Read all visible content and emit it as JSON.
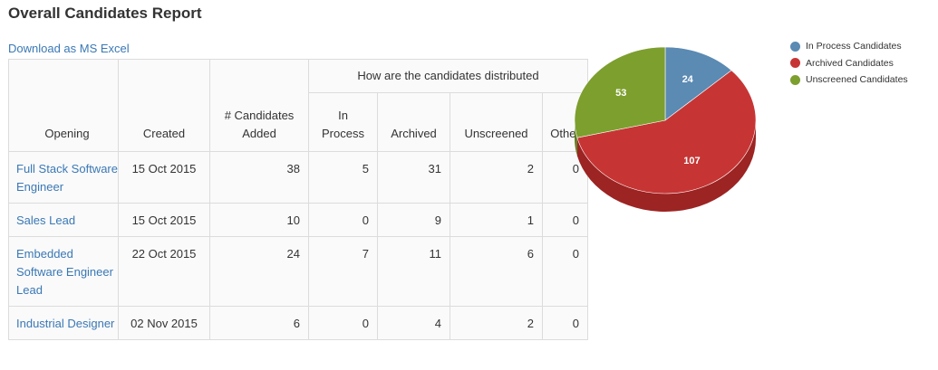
{
  "report": {
    "title": "Overall Candidates Report",
    "download_label": "Download as MS Excel"
  },
  "table": {
    "headers": {
      "opening": "Opening",
      "created": "Created",
      "added": "# Candidates Added",
      "group": "How are the candidates distributed",
      "in_process": "In Process",
      "archived": "Archived",
      "unscreened": "Unscreened",
      "other": "Other"
    },
    "rows": [
      {
        "opening": "Full Stack Software Engineer",
        "created": "15 Oct 2015",
        "added": "38",
        "in_process": "5",
        "archived": "31",
        "unscreened": "2",
        "other": "0"
      },
      {
        "opening": "Sales Lead",
        "created": "15 Oct 2015",
        "added": "10",
        "in_process": "0",
        "archived": "9",
        "unscreened": "1",
        "other": "0"
      },
      {
        "opening": "Embedded Software Engineer Lead",
        "created": "22 Oct 2015",
        "added": "24",
        "in_process": "7",
        "archived": "11",
        "unscreened": "6",
        "other": "0"
      },
      {
        "opening": "Industrial Designer",
        "created": "02 Nov 2015",
        "added": "6",
        "in_process": "0",
        "archived": "4",
        "unscreened": "2",
        "other": "0"
      }
    ]
  },
  "chart_data": {
    "type": "pie",
    "categories": [
      "In Process Candidates",
      "Archived Candidates",
      "Unscreened Candidates"
    ],
    "values": [
      24,
      107,
      53
    ],
    "colors": [
      "#5b8ab3",
      "#c63534",
      "#7d9f2e"
    ],
    "side_colors": [
      "#3f6d95",
      "#9c2423",
      "#5e7c1e"
    ],
    "legend_position": "top-right"
  }
}
